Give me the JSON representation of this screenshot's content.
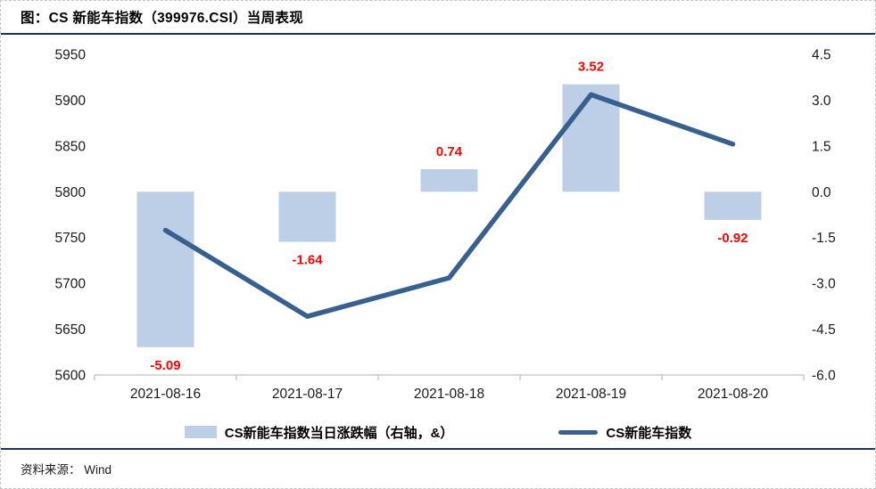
{
  "title": "图：CS 新能车指数（399976.CSI）当周表现",
  "colors": {
    "bar": "#BCCFE6",
    "line": "#376091",
    "value_label": "#FF0000",
    "rule": "#17365D",
    "axis_line": "#BFBFBF"
  },
  "legend": [
    {
      "type": "bar",
      "label": "CS新能车指数当日涨跌幅（右轴，&）"
    },
    {
      "type": "line",
      "label": "CS新能车指数"
    }
  ],
  "footer": {
    "source_label": "资料来源：",
    "source_value": "Wind"
  },
  "chart_data": {
    "type": "bar+line",
    "title": "图：CS 新能车指数（399976.CSI）当周表现",
    "categories": [
      "2021-08-16",
      "2021-08-17",
      "2021-08-18",
      "2021-08-19",
      "2021-08-20"
    ],
    "series": [
      {
        "name": "CS新能车指数当日涨跌幅（右轴，&）",
        "type": "bar",
        "axis": "right",
        "values": [
          -5.09,
          -1.64,
          0.74,
          3.52,
          -0.92
        ],
        "labels": [
          "-5.09",
          "-1.64",
          "0.74",
          "3.52",
          "-0.92"
        ]
      },
      {
        "name": "CS新能车指数",
        "type": "line",
        "axis": "left",
        "values": [
          5758,
          5664,
          5706,
          5906,
          5852
        ]
      }
    ],
    "left_axis": {
      "min": 5600,
      "max": 5950,
      "step": 50,
      "ticks": [
        5950,
        5900,
        5850,
        5800,
        5750,
        5700,
        5650,
        5600
      ]
    },
    "right_axis": {
      "min": -6.0,
      "max": 4.5,
      "step": 1.5,
      "ticks": [
        4.5,
        3.0,
        1.5,
        0.0,
        -1.5,
        -3.0,
        -4.5,
        -6.0
      ]
    },
    "grid": false,
    "legend_position": "bottom"
  }
}
